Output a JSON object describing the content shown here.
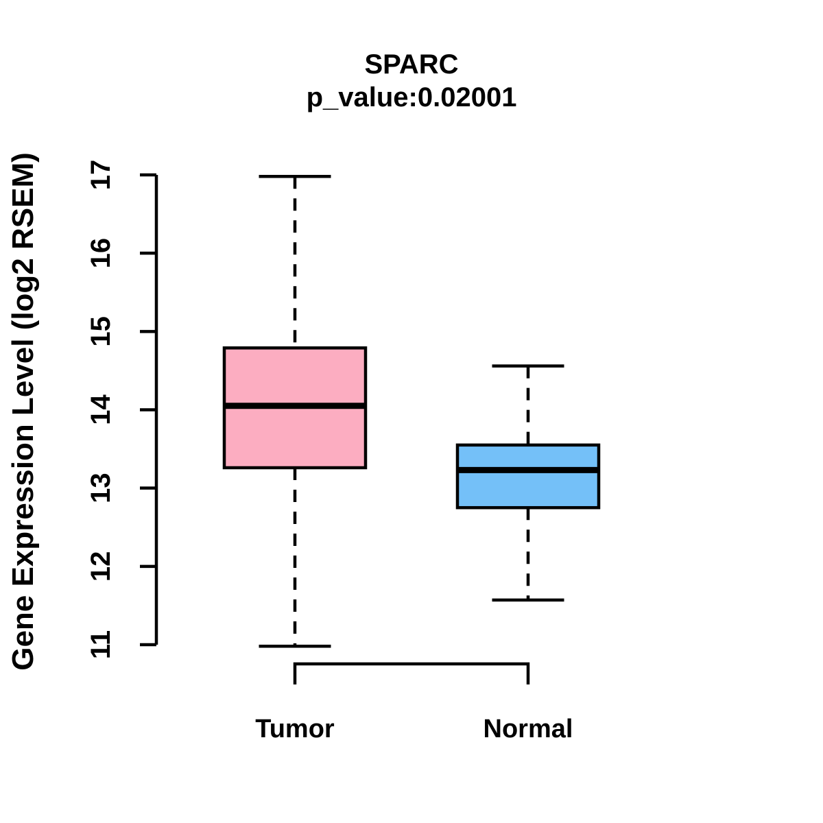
{
  "chart_data": {
    "type": "boxplot",
    "title": "SPARC",
    "subtitle": "p_value:0.02001",
    "ylabel": "Gene Expression Level (log2 RSEM)",
    "ylim": [
      11,
      17
    ],
    "yticks": [
      "11",
      "12",
      "13",
      "14",
      "15",
      "16",
      "17"
    ],
    "grid": false,
    "legend": "none",
    "categories": [
      "Tumor",
      "Normal"
    ],
    "series": [
      {
        "name": "Tumor",
        "color": "#FCADC1",
        "whisker_low": 10.98,
        "q1": 13.26,
        "median": 14.05,
        "q3": 14.79,
        "whisker_high": 16.98
      },
      {
        "name": "Normal",
        "color": "#74C0F8",
        "whisker_low": 11.57,
        "q1": 12.75,
        "median": 13.23,
        "q3": 13.55,
        "whisker_high": 14.56
      }
    ],
    "line_color": "#000000",
    "background": "#FFFFFF"
  }
}
